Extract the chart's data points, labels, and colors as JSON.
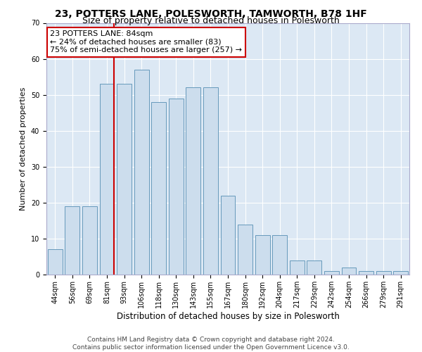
{
  "title": "23, POTTERS LANE, POLESWORTH, TAMWORTH, B78 1HF",
  "subtitle": "Size of property relative to detached houses in Polesworth",
  "xlabel": "Distribution of detached houses by size in Polesworth",
  "ylabel": "Number of detached properties",
  "categories": [
    "44sqm",
    "56sqm",
    "69sqm",
    "81sqm",
    "93sqm",
    "106sqm",
    "118sqm",
    "130sqm",
    "143sqm",
    "155sqm",
    "167sqm",
    "180sqm",
    "192sqm",
    "204sqm",
    "217sqm",
    "229sqm",
    "242sqm",
    "254sqm",
    "266sqm",
    "279sqm",
    "291sqm"
  ],
  "values": [
    7,
    19,
    19,
    53,
    53,
    57,
    48,
    49,
    52,
    52,
    22,
    14,
    11,
    11,
    4,
    4,
    1,
    2,
    1,
    1,
    1
  ],
  "bar_color": "#ccdded",
  "bar_edge_color": "#6699bb",
  "vline_x_index": 3,
  "vline_color": "#cc0000",
  "annotation_line1": "23 POTTERS LANE: 84sqm",
  "annotation_line2": "← 24% of detached houses are smaller (83)",
  "annotation_line3": "75% of semi-detached houses are larger (257) →",
  "annotation_box_color": "#ffffff",
  "annotation_box_edge": "#cc0000",
  "ylim": [
    0,
    70
  ],
  "yticks": [
    0,
    10,
    20,
    30,
    40,
    50,
    60,
    70
  ],
  "footer_text": "Contains HM Land Registry data © Crown copyright and database right 2024.\nContains public sector information licensed under the Open Government Licence v3.0.",
  "bg_color": "#ffffff",
  "plot_bg_color": "#dce8f4",
  "grid_color": "#ffffff",
  "title_fontsize": 10,
  "subtitle_fontsize": 9,
  "tick_fontsize": 7,
  "ylabel_fontsize": 8,
  "xlabel_fontsize": 8.5,
  "footer_fontsize": 6.5,
  "annotation_fontsize": 8
}
